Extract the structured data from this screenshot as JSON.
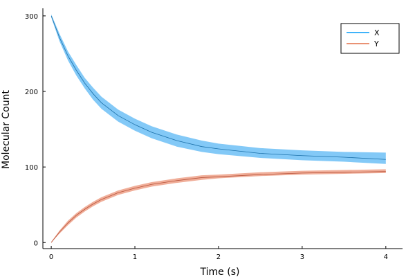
{
  "chart_data": {
    "type": "line",
    "xlabel": "Time (s)",
    "ylabel": "Molecular Count",
    "xlim": [
      -0.1,
      4.2
    ],
    "ylim": [
      -8,
      310
    ],
    "xticks": [
      0,
      1,
      2,
      3,
      4
    ],
    "yticks": [
      0,
      100,
      200,
      300
    ],
    "grid": false,
    "legend_position": "top-right",
    "series": [
      {
        "name": "X",
        "color": "#009af9",
        "ribbon_color": "#7cc6f7",
        "x": [
          0,
          0.1,
          0.2,
          0.3,
          0.4,
          0.5,
          0.6,
          0.8,
          1.0,
          1.2,
          1.5,
          1.8,
          2.0,
          2.5,
          3.0,
          3.5,
          4.0
        ],
        "values": [
          300,
          271,
          247,
          228,
          211,
          197,
          185,
          168,
          156,
          146,
          135,
          127,
          124,
          118,
          115,
          113,
          110
        ],
        "lower": [
          298,
          266,
          241,
          221,
          204,
          189,
          177,
          160,
          148,
          138,
          127,
          120,
          117,
          112,
          109,
          107,
          104
        ],
        "upper": [
          302,
          276,
          253,
          235,
          218,
          205,
          193,
          176,
          164,
          154,
          143,
          135,
          131,
          125,
          122,
          120,
          119
        ]
      },
      {
        "name": "Y",
        "color": "#e26f46",
        "ribbon_color": "#efaa94",
        "x": [
          0,
          0.1,
          0.2,
          0.3,
          0.4,
          0.5,
          0.6,
          0.8,
          1.0,
          1.2,
          1.5,
          1.8,
          2.0,
          2.5,
          3.0,
          3.5,
          4.0
        ],
        "values": [
          0,
          14,
          26,
          36,
          44,
          51,
          57,
          66,
          72,
          77,
          82,
          86,
          87,
          90,
          92,
          93,
          94
        ],
        "lower": [
          0,
          12,
          23,
          33,
          41,
          48,
          54,
          63,
          69,
          74,
          79,
          83,
          85,
          88,
          90,
          91,
          92
        ],
        "upper": [
          1,
          16,
          29,
          39,
          47,
          54,
          60,
          69,
          75,
          80,
          85,
          89,
          90,
          93,
          95,
          96,
          97
        ]
      }
    ]
  }
}
